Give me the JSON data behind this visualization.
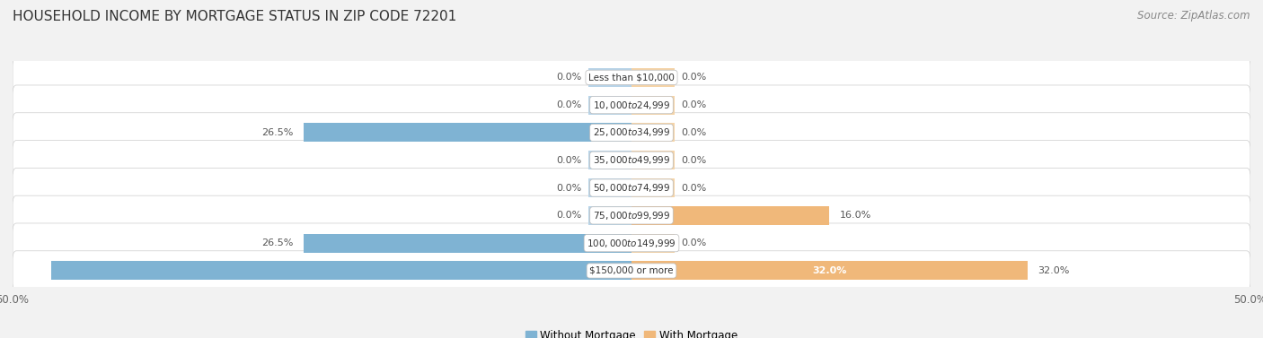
{
  "title": "HOUSEHOLD INCOME BY MORTGAGE STATUS IN ZIP CODE 72201",
  "source": "Source: ZipAtlas.com",
  "categories": [
    "Less than $10,000",
    "$10,000 to $24,999",
    "$25,000 to $34,999",
    "$35,000 to $49,999",
    "$50,000 to $74,999",
    "$75,000 to $99,999",
    "$100,000 to $149,999",
    "$150,000 or more"
  ],
  "without_mortgage": [
    0.0,
    0.0,
    26.5,
    0.0,
    0.0,
    0.0,
    26.5,
    46.9
  ],
  "with_mortgage": [
    0.0,
    0.0,
    0.0,
    0.0,
    0.0,
    16.0,
    0.0,
    32.0
  ],
  "without_mortgage_color": "#7fb3d3",
  "with_mortgage_color": "#f0b87a",
  "without_mortgage_color_light": "#b8d4e8",
  "with_mortgage_color_light": "#f5d4a8",
  "row_bg_color": "#ebebeb",
  "bg_color": "#f2f2f2",
  "xlim": 50.0,
  "min_bar": 3.5,
  "title_fontsize": 11,
  "source_fontsize": 8.5,
  "label_fontsize": 8,
  "tick_fontsize": 8.5,
  "legend_fontsize": 8.5,
  "cat_fontsize": 7.5
}
